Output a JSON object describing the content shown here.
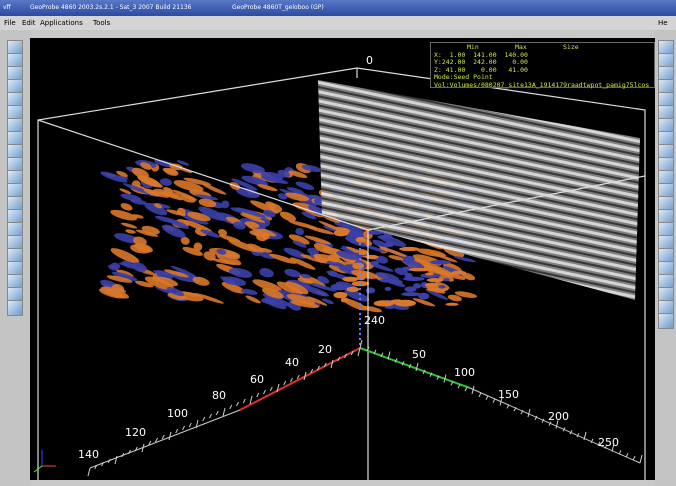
{
  "window": {
    "app_title": "GeoProbe 4860 2003.2s.2.1 - Sat_3 2007 Build 21136",
    "doc_title": "GeoProbe 4860T_geloboo (GP)",
    "corner": "vff"
  },
  "menu": [
    "File",
    "Edit",
    "Applications",
    "Tools"
  ],
  "menu_right": "He",
  "info_panel": {
    "header": [
      "Min",
      "Max",
      "Size"
    ],
    "rows": [
      "X:  1.00  141.00  140.00",
      "Y:242.00  242.00    0.00",
      "Z: 41.00    0.00   41.00"
    ],
    "mode": "Mode:Seed Point",
    "vol": "Vol:Volumes/080207_site13A_1914179raadtwpot_pamig75lcos"
  },
  "scene": {
    "top_label": "0",
    "depth_label": "240",
    "left_axis": [
      "20",
      "40",
      "60",
      "80",
      "100",
      "120",
      "140"
    ],
    "right_axis": [
      "50",
      "100",
      "150",
      "200",
      "250"
    ]
  }
}
